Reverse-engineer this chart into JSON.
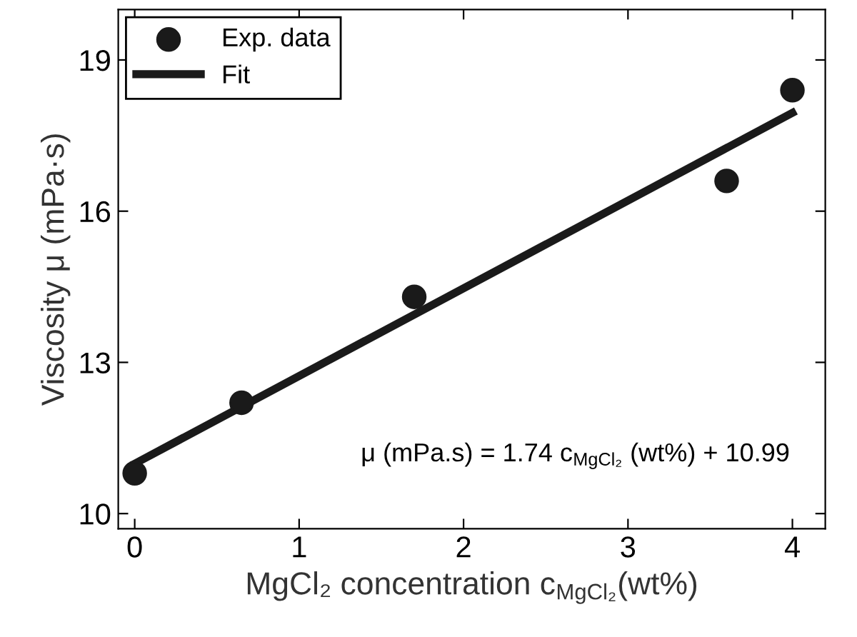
{
  "chart_data": {
    "type": "scatter",
    "xlabel": "MgCl₂ concentration c$_{MgCl₂}$(wt%)",
    "ylabel": "Viscosity μ (mPa·s)",
    "annotations": [
      "μ (mPa.s) = 1.74 c$_{MgCl₂}$ (wt%) + 10.99"
    ],
    "series": [
      {
        "name": "Exp. data",
        "color": "#1a1a1a",
        "marker": "circle",
        "x": [
          0,
          0.65,
          1.7,
          3.6,
          4.0
        ],
        "values": [
          10.8,
          12.2,
          14.3,
          16.6,
          18.4
        ]
      },
      {
        "name": "Fit",
        "type": "line",
        "color": "#1a1a1a",
        "marker": "none",
        "line_style": "solid",
        "x": [
          0,
          4
        ],
        "values": [
          10.99,
          17.95
        ]
      }
    ],
    "xlim": [
      -0.1,
      4.2
    ],
    "ylim": [
      9.7,
      20
    ],
    "xticks": [
      0,
      1,
      2,
      3,
      4
    ],
    "yticks": [
      10,
      13,
      16,
      19
    ],
    "grid": false,
    "legend": "top left"
  }
}
